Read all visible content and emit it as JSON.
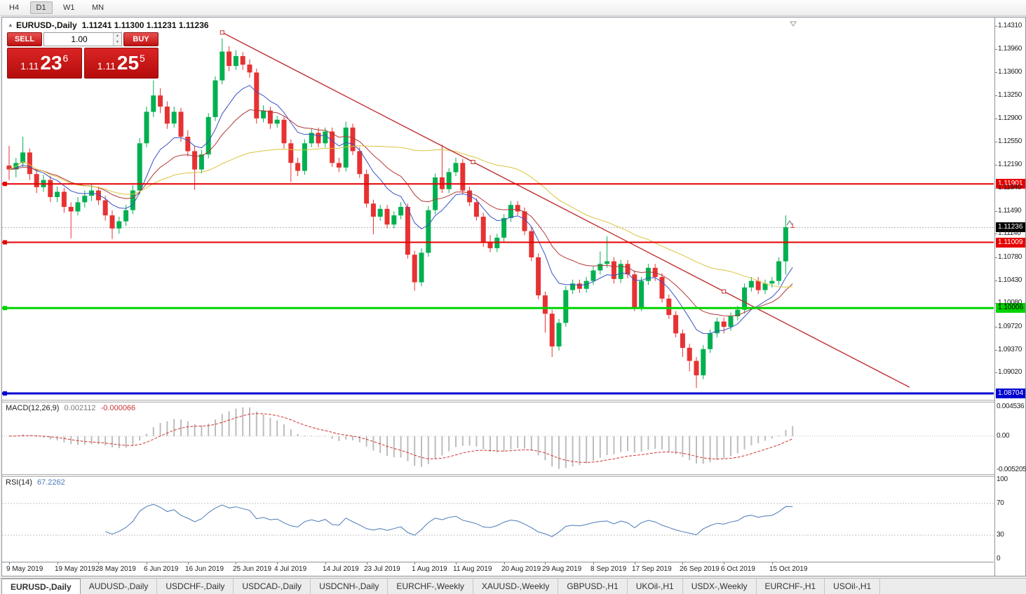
{
  "toolbar": {
    "timeframes": [
      {
        "label": "H4",
        "active": false
      },
      {
        "label": "D1",
        "active": true
      },
      {
        "label": "W1",
        "active": false
      },
      {
        "label": "MN",
        "active": false
      }
    ]
  },
  "chart": {
    "symbol": "EURUSD-,Daily",
    "ohlc": "1.11241 1.11300 1.11231 1.11236"
  },
  "icons": {
    "collapse_up": "▲",
    "spin_up": "▲",
    "spin_down": "▼"
  },
  "one_click": {
    "sell_label": "SELL",
    "buy_label": "BUY",
    "lot": "1.00",
    "sell_price": {
      "prefix": "1.11",
      "big": "23",
      "sup": "6"
    },
    "buy_price": {
      "prefix": "1.11",
      "big": "25",
      "sup": "5"
    }
  },
  "indicators_text": {
    "macd_name": "MACD(12,26,9)",
    "macd_value": "0.002112",
    "macd_signal": "-0.000066",
    "rsi_name": "RSI(14)",
    "rsi_value": "67.2262"
  },
  "chart_data": {
    "type": "candlestick",
    "symbol": "EURUSD-,Daily",
    "current_price": 1.11236,
    "up_color": "#00b050",
    "down_color": "#e63232",
    "price_axis_labels": [
      "1.14310",
      "1.13960",
      "1.13600",
      "1.13250",
      "1.12900",
      "1.12550",
      "1.12190",
      "1.11840",
      "1.11490",
      "1.11140",
      "1.10780",
      "1.10430",
      "1.10080",
      "1.09720",
      "1.09370",
      "1.09020"
    ],
    "hlines": [
      {
        "price": 1.11901,
        "color": "#e60000",
        "width": 2,
        "badge": "1.11901",
        "badge_text_color": "#ffffff"
      },
      {
        "price": 1.11009,
        "color": "#e60000",
        "width": 2,
        "badge": "1.11009",
        "badge_text_color": "#ffffff"
      },
      {
        "price": 1.10006,
        "color": "#00d400",
        "width": 3,
        "badge": "1.10006",
        "badge_text_color": "#000000"
      },
      {
        "price": 1.08704,
        "color": "#0000d0",
        "width": 3,
        "badge": "1.08704",
        "badge_text_color": "#ffffff"
      }
    ],
    "current_badge": {
      "text": "1.11236",
      "bg": "#000000",
      "fg": "#ffffff"
    },
    "trendline": {
      "color": "#c03030",
      "i1": 31,
      "p1": 1.1421,
      "i2": 104,
      "p2": 1.1026,
      "extend_i": 131
    },
    "moving_averages": [
      {
        "name": "fast",
        "method": "ema",
        "period": 9,
        "color": "#3b52c4"
      },
      {
        "name": "mid",
        "method": "ema",
        "period": 18,
        "color": "#b23737"
      },
      {
        "name": "slow",
        "method": "sma",
        "period": 45,
        "color": "#d8c43c"
      }
    ],
    "date_labels": [
      {
        "text": "9 May 2019",
        "i": 0
      },
      {
        "text": "19 May 2019",
        "i": 7
      },
      {
        "text": "28 May 2019",
        "i": 13
      },
      {
        "text": "6 Jun 2019",
        "i": 20
      },
      {
        "text": "16 Jun 2019",
        "i": 26
      },
      {
        "text": "25 Jun 2019",
        "i": 33
      },
      {
        "text": "4 Jul 2019",
        "i": 39
      },
      {
        "text": "14 Jul 2019",
        "i": 46
      },
      {
        "text": "23 Jul 2019",
        "i": 52
      },
      {
        "text": "1 Aug 2019",
        "i": 59
      },
      {
        "text": "11 Aug 2019",
        "i": 65
      },
      {
        "text": "20 Aug 2019",
        "i": 72
      },
      {
        "text": "29 Aug 2019",
        "i": 78
      },
      {
        "text": "8 Sep 2019",
        "i": 85
      },
      {
        "text": "17 Sep 2019",
        "i": 91
      },
      {
        "text": "26 Sep 2019",
        "i": 98
      },
      {
        "text": "6 Oct 2019",
        "i": 104
      },
      {
        "text": "15 Oct 2019",
        "i": 111
      }
    ],
    "macd": {
      "params": [
        12,
        26,
        9
      ],
      "hist_color": "#bdbdbd",
      "signal_color": "#d23333",
      "axis_labels": [
        {
          "v": 0.004536,
          "text": "0.004536"
        },
        {
          "v": 0,
          "text": "0.00"
        },
        {
          "v": -0.005205,
          "text": "-0.005205"
        }
      ],
      "range": [
        -0.005205,
        0.004536
      ]
    },
    "rsi": {
      "period": 14,
      "color": "#4a7ab8",
      "levels": [
        70,
        30
      ],
      "axis_labels": [
        {
          "v": 100,
          "text": "100"
        },
        {
          "v": 70,
          "text": "70"
        },
        {
          "v": 30,
          "text": "30"
        },
        {
          "v": 0,
          "text": "0"
        }
      ],
      "range": [
        0,
        100
      ]
    },
    "candles": [
      [
        1.1218,
        1.1248,
        1.1196,
        1.1212
      ],
      [
        1.1212,
        1.123,
        1.12,
        1.1222
      ],
      [
        1.1222,
        1.1262,
        1.1216,
        1.1238
      ],
      [
        1.1238,
        1.1244,
        1.1196,
        1.1205
      ],
      [
        1.1205,
        1.1212,
        1.1176,
        1.1185
      ],
      [
        1.1185,
        1.1204,
        1.1178,
        1.1196
      ],
      [
        1.1196,
        1.1202,
        1.1162,
        1.117
      ],
      [
        1.117,
        1.1186,
        1.1162,
        1.1178
      ],
      [
        1.1178,
        1.1184,
        1.1146,
        1.1155
      ],
      [
        1.1155,
        1.1162,
        1.1107,
        1.1148
      ],
      [
        1.1148,
        1.117,
        1.1142,
        1.1162
      ],
      [
        1.1162,
        1.118,
        1.1154,
        1.1172
      ],
      [
        1.1172,
        1.119,
        1.1164,
        1.118
      ],
      [
        1.118,
        1.1186,
        1.1158,
        1.1165
      ],
      [
        1.1165,
        1.1172,
        1.1134,
        1.1142
      ],
      [
        1.1142,
        1.115,
        1.1106,
        1.1122
      ],
      [
        1.1122,
        1.114,
        1.1114,
        1.1133
      ],
      [
        1.1133,
        1.1158,
        1.1126,
        1.115
      ],
      [
        1.115,
        1.1188,
        1.1144,
        1.118
      ],
      [
        1.118,
        1.126,
        1.1174,
        1.1252
      ],
      [
        1.1252,
        1.1308,
        1.1246,
        1.13
      ],
      [
        1.13,
        1.1348,
        1.1292,
        1.1325
      ],
      [
        1.1325,
        1.1336,
        1.1298,
        1.1308
      ],
      [
        1.1308,
        1.1316,
        1.1274,
        1.1282
      ],
      [
        1.1282,
        1.1308,
        1.1276,
        1.13
      ],
      [
        1.13,
        1.1306,
        1.1254,
        1.1262
      ],
      [
        1.1262,
        1.1272,
        1.1232,
        1.124
      ],
      [
        1.124,
        1.1248,
        1.1181,
        1.1212
      ],
      [
        1.1212,
        1.1242,
        1.1206,
        1.1235
      ],
      [
        1.1235,
        1.1298,
        1.1229,
        1.1292
      ],
      [
        1.1292,
        1.1354,
        1.1286,
        1.1348
      ],
      [
        1.1348,
        1.1412,
        1.1342,
        1.1392
      ],
      [
        1.1392,
        1.14,
        1.1362,
        1.137
      ],
      [
        1.137,
        1.1394,
        1.1364,
        1.1385
      ],
      [
        1.1385,
        1.1391,
        1.1364,
        1.1372
      ],
      [
        1.1372,
        1.138,
        1.1352,
        1.136
      ],
      [
        1.136,
        1.1366,
        1.1282,
        1.129
      ],
      [
        1.129,
        1.131,
        1.1284,
        1.1302
      ],
      [
        1.1302,
        1.1308,
        1.1274,
        1.1282
      ],
      [
        1.1282,
        1.1294,
        1.1276,
        1.1288
      ],
      [
        1.1288,
        1.1294,
        1.1244,
        1.1252
      ],
      [
        1.1252,
        1.1258,
        1.1193,
        1.1222
      ],
      [
        1.1222,
        1.123,
        1.1202,
        1.121
      ],
      [
        1.121,
        1.1258,
        1.1204,
        1.1252
      ],
      [
        1.1252,
        1.1274,
        1.1246,
        1.1268
      ],
      [
        1.1268,
        1.1276,
        1.1246,
        1.1252
      ],
      [
        1.1252,
        1.1276,
        1.1246,
        1.127
      ],
      [
        1.127,
        1.1276,
        1.1216,
        1.1222
      ],
      [
        1.1222,
        1.123,
        1.1208,
        1.1215
      ],
      [
        1.1215,
        1.1285,
        1.1209,
        1.1276
      ],
      [
        1.1276,
        1.1282,
        1.1234,
        1.124
      ],
      [
        1.124,
        1.1246,
        1.1199,
        1.1205
      ],
      [
        1.1205,
        1.1212,
        1.1154,
        1.116
      ],
      [
        1.116,
        1.1166,
        1.1113,
        1.114
      ],
      [
        1.114,
        1.1158,
        1.1134,
        1.1152
      ],
      [
        1.1152,
        1.1158,
        1.1122,
        1.1128
      ],
      [
        1.1128,
        1.1148,
        1.1122,
        1.1142
      ],
      [
        1.1142,
        1.1162,
        1.1136,
        1.1155
      ],
      [
        1.1155,
        1.116,
        1.1076,
        1.1082
      ],
      [
        1.1082,
        1.1088,
        1.1027,
        1.104
      ],
      [
        1.104,
        1.1092,
        1.1034,
        1.1085
      ],
      [
        1.1085,
        1.1156,
        1.1079,
        1.115
      ],
      [
        1.115,
        1.1206,
        1.1144,
        1.12
      ],
      [
        1.12,
        1.125,
        1.1176,
        1.1182
      ],
      [
        1.1182,
        1.1214,
        1.1176,
        1.1208
      ],
      [
        1.1208,
        1.123,
        1.1202,
        1.1222
      ],
      [
        1.1222,
        1.1228,
        1.1174,
        1.118
      ],
      [
        1.118,
        1.1186,
        1.1156,
        1.1162
      ],
      [
        1.1162,
        1.1168,
        1.1134,
        1.114
      ],
      [
        1.114,
        1.1146,
        1.1094,
        1.11
      ],
      [
        1.11,
        1.1112,
        1.1086,
        1.1092
      ],
      [
        1.1092,
        1.1114,
        1.1086,
        1.1108
      ],
      [
        1.1108,
        1.1144,
        1.1102,
        1.1138
      ],
      [
        1.1138,
        1.1164,
        1.1132,
        1.1158
      ],
      [
        1.1158,
        1.1164,
        1.1142,
        1.1148
      ],
      [
        1.1148,
        1.1154,
        1.1112,
        1.1118
      ],
      [
        1.1118,
        1.1124,
        1.1072,
        1.1078
      ],
      [
        1.1078,
        1.1084,
        1.1014,
        1.102
      ],
      [
        1.102,
        1.1026,
        1.0963,
        1.0992
      ],
      [
        1.0992,
        1.0998,
        1.0926,
        1.0942
      ],
      [
        1.0942,
        1.0984,
        1.0936,
        1.0978
      ],
      [
        1.0978,
        1.1034,
        1.0972,
        1.1028
      ],
      [
        1.1028,
        1.1044,
        1.1022,
        1.1038
      ],
      [
        1.1038,
        1.1044,
        1.1024,
        1.103
      ],
      [
        1.103,
        1.1048,
        1.1024,
        1.1042
      ],
      [
        1.1042,
        1.1064,
        1.1036,
        1.1058
      ],
      [
        1.1058,
        1.1087,
        1.1052,
        1.1068
      ],
      [
        1.1068,
        1.111,
        1.1062,
        1.1072
      ],
      [
        1.1072,
        1.1078,
        1.1038,
        1.1045
      ],
      [
        1.1045,
        1.1074,
        1.1039,
        1.1068
      ],
      [
        1.1068,
        1.1074,
        1.1046,
        1.1052
      ],
      [
        1.1052,
        1.1058,
        1.0996,
        1.1002
      ],
      [
        1.1002,
        1.1048,
        1.0996,
        1.1042
      ],
      [
        1.1042,
        1.1068,
        1.1036,
        1.1062
      ],
      [
        1.1062,
        1.1068,
        1.1042,
        1.1048
      ],
      [
        1.1048,
        1.1054,
        1.1009,
        1.1015
      ],
      [
        1.1015,
        1.1021,
        1.0984,
        1.099
      ],
      [
        1.099,
        1.0996,
        1.0956,
        1.0962
      ],
      [
        1.0962,
        1.0968,
        1.0926,
        1.094
      ],
      [
        1.094,
        1.0946,
        1.0904,
        1.092
      ],
      [
        1.092,
        1.0926,
        1.0879,
        1.0898
      ],
      [
        1.0898,
        1.0944,
        1.0892,
        1.0938
      ],
      [
        1.0938,
        1.0968,
        1.0932,
        1.0962
      ],
      [
        1.0962,
        1.0986,
        1.0956,
        1.098
      ],
      [
        1.098,
        1.0986,
        1.0962,
        1.0972
      ],
      [
        1.0972,
        1.0994,
        1.0966,
        1.0988
      ],
      [
        1.0988,
        1.1004,
        1.0982,
        1.0998
      ],
      [
        1.0998,
        1.1038,
        1.0992,
        1.1032
      ],
      [
        1.1032,
        1.1048,
        1.1026,
        1.1042
      ],
      [
        1.1042,
        1.1048,
        1.1022,
        1.1028
      ],
      [
        1.1028,
        1.1044,
        1.1022,
        1.1038
      ],
      [
        1.1038,
        1.1048,
        1.1032,
        1.1042
      ],
      [
        1.1042,
        1.1078,
        1.1036,
        1.1072
      ],
      [
        1.1072,
        1.1142,
        1.1052,
        1.1124
      ],
      [
        1.11241,
        1.113,
        1.11231,
        1.11236
      ]
    ]
  },
  "tabs": [
    {
      "label": "EURUSD-,Daily",
      "active": true
    },
    {
      "label": "AUDUSD-,Daily",
      "active": false
    },
    {
      "label": "USDCHF-,Daily",
      "active": false
    },
    {
      "label": "USDCAD-,Daily",
      "active": false
    },
    {
      "label": "USDCNH-,Daily",
      "active": false
    },
    {
      "label": "EURCHF-,Weekly",
      "active": false
    },
    {
      "label": "XAUUSD-,Weekly",
      "active": false
    },
    {
      "label": "GBPUSD-,H1",
      "active": false
    },
    {
      "label": "UKOil-,H1",
      "active": false
    },
    {
      "label": "USDX-,Weekly",
      "active": false
    },
    {
      "label": "EURCHF-,H1",
      "active": false
    },
    {
      "label": "USOil-,H1",
      "active": false
    }
  ]
}
